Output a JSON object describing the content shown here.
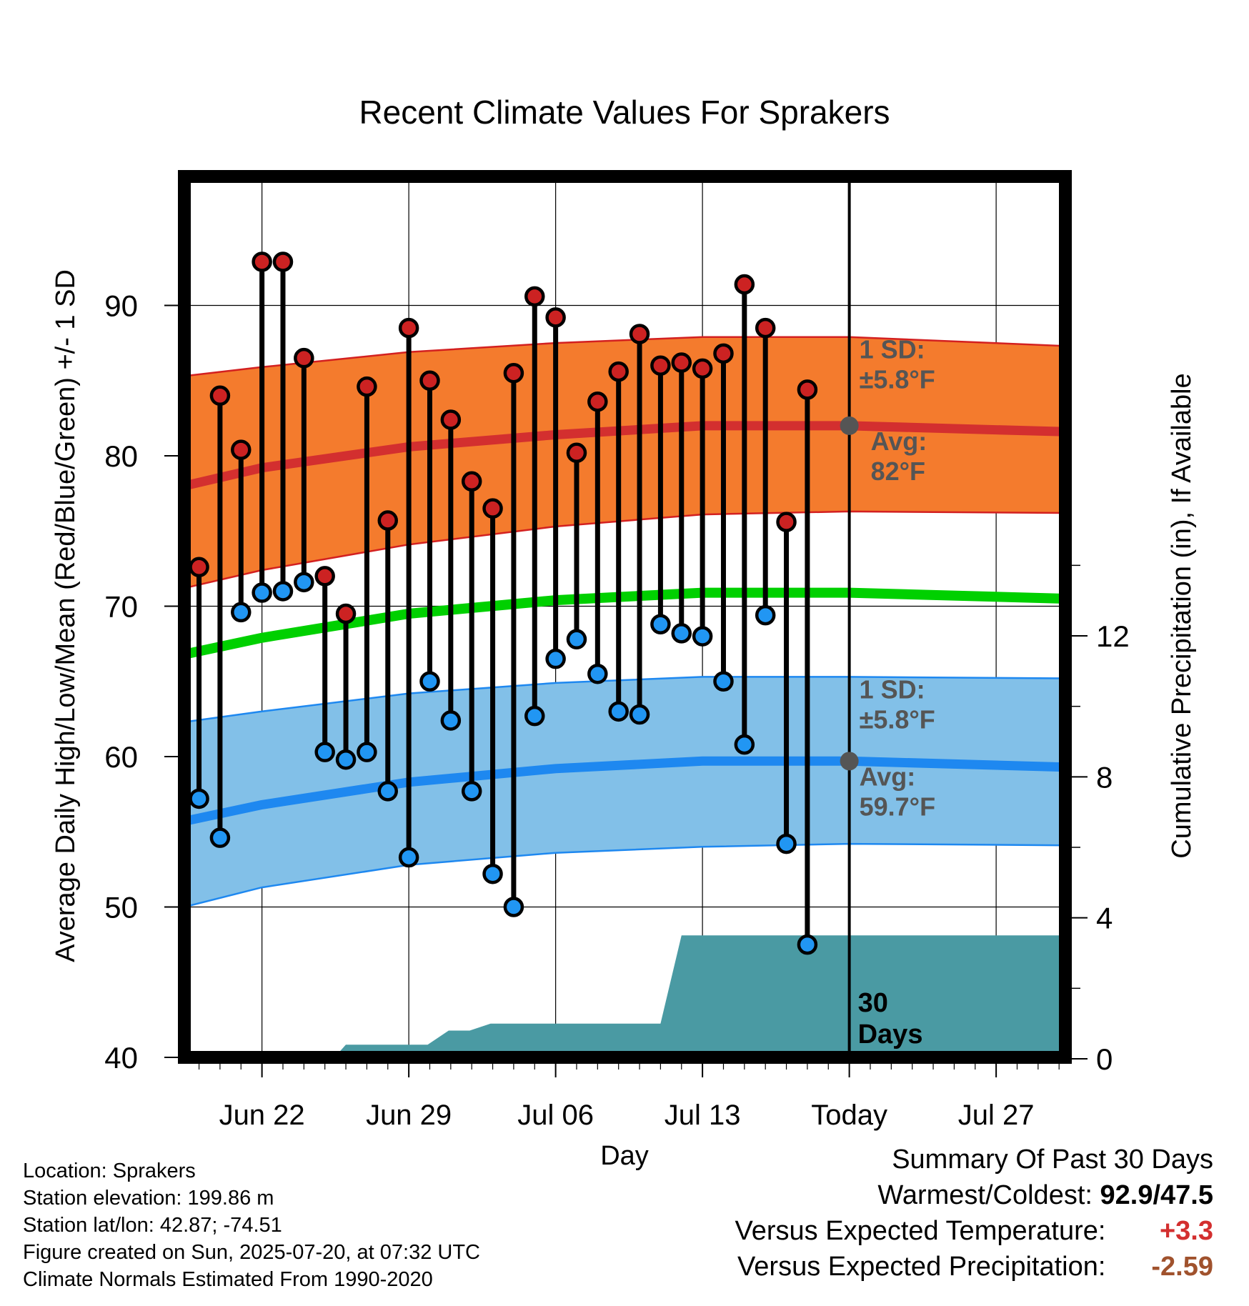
{
  "chart_data": {
    "type": "line",
    "title": "Recent Climate Values For Sprakers",
    "xlabel": "Day",
    "ylabel": "Average Daily High/Low/Mean (Red/Blue/Green) +/- 1 SD",
    "y2label": "Cumulative Precipitation (in), If Available",
    "ylim": [
      40,
      98
    ],
    "y_ticks": [
      "40",
      "50",
      "60",
      "70",
      "80",
      "90"
    ],
    "y2_ticks": [
      "0",
      "4",
      "8",
      "12"
    ],
    "y2_tick_values": [
      0,
      4,
      8,
      12
    ],
    "y2lim": [
      0,
      24
    ],
    "x_ticks": [
      "Jun 22",
      "Jun 29",
      "Jul 06",
      "Jul 13",
      "Today",
      "Jul 27"
    ],
    "x_tick_days": [
      22,
      29,
      36,
      43,
      50,
      57
    ],
    "xlim": [
      18.3,
      60.3
    ],
    "days": [
      19,
      20,
      21,
      22,
      23,
      24,
      25,
      26,
      27,
      28,
      29,
      30,
      31,
      32,
      33,
      34,
      35,
      36,
      37,
      38,
      39,
      40,
      41,
      42,
      43,
      44,
      45,
      46,
      47,
      48,
      49
    ],
    "highs": [
      72.6,
      84.0,
      80.4,
      92.9,
      92.9,
      86.5,
      72.0,
      69.5,
      84.6,
      75.7,
      88.5,
      85.0,
      82.4,
      78.3,
      76.5,
      85.5,
      90.6,
      89.2,
      80.2,
      83.6,
      85.6,
      88.1,
      86.0,
      86.2,
      85.8,
      86.8,
      91.4,
      88.5,
      75.6,
      84.4,
      null
    ],
    "lows": [
      57.2,
      54.6,
      69.6,
      70.9,
      71.0,
      71.6,
      60.3,
      59.8,
      60.3,
      57.7,
      53.3,
      65.0,
      62.4,
      57.7,
      52.2,
      50.0,
      62.7,
      66.5,
      67.8,
      65.5,
      63.0,
      62.8,
      68.8,
      68.2,
      68.0,
      65.0,
      60.8,
      69.4,
      54.2,
      47.5,
      null
    ],
    "normal_high": {
      "days": [
        18.3,
        22,
        29,
        36,
        43,
        50,
        60.3
      ],
      "mean": [
        78.0,
        79.2,
        80.6,
        81.4,
        82.0,
        82.0,
        81.6
      ],
      "upper": [
        85.3,
        85.9,
        86.9,
        87.5,
        87.9,
        87.9,
        87.3
      ],
      "lower": [
        71.2,
        72.4,
        74.1,
        75.3,
        76.1,
        76.3,
        76.2
      ]
    },
    "normal_mean": {
      "days": [
        18.3,
        22,
        29,
        36,
        43,
        50,
        60.3
      ],
      "values": [
        66.8,
        67.9,
        69.5,
        70.4,
        70.9,
        70.9,
        70.5
      ]
    },
    "normal_low": {
      "days": [
        18.3,
        22,
        29,
        36,
        43,
        50,
        60.3
      ],
      "mean": [
        55.7,
        56.8,
        58.3,
        59.2,
        59.7,
        59.7,
        59.3
      ],
      "upper": [
        62.3,
        63.0,
        64.2,
        64.9,
        65.3,
        65.3,
        65.2
      ],
      "lower": [
        50.0,
        51.3,
        52.8,
        53.6,
        54.0,
        54.2,
        54.1
      ]
    },
    "precip": {
      "days": [
        18.3,
        25.4,
        26,
        29.9,
        30.9,
        31.9,
        32.9,
        41,
        42,
        60.3
      ],
      "values": [
        0,
        0,
        0.4,
        0.4,
        0.8,
        0.8,
        1.0,
        1.0,
        3.5,
        3.5
      ]
    },
    "annotations": {
      "high_sd": "1 SD:",
      "high_sd_value": "±5.8°F",
      "high_avg": "Avg:",
      "high_avg_value": "82°F",
      "low_sd": "1 SD:",
      "low_sd_value": "±5.8°F",
      "low_avg": "Avg:",
      "low_avg_value": "59.7°F",
      "days_label_1": "30",
      "days_label_2": "Days"
    },
    "today_day": 50,
    "colors": {
      "high_band": "#f47b2d",
      "high_line": "#d32f2f",
      "mean_line": "#00d000",
      "low_band": "#82c0e8",
      "low_line": "#1e88f0",
      "precip": "#4a9aa3",
      "high_dot": "#cc2222",
      "low_dot": "#2196f3",
      "annotation": "#555555"
    }
  },
  "info": {
    "location": "Location: Sprakers",
    "elevation": "Station elevation: 199.86 m",
    "latlon": "Station lat/lon: 42.87; -74.51",
    "created": "Figure created on Sun, 2025-07-20, at 07:32 UTC",
    "normals": "Climate Normals Estimated From 1990-2020"
  },
  "summary": {
    "title": "Summary Of Past 30 Days",
    "warm_cold_label": "Warmest/Coldest:",
    "warm_cold_value": "92.9/47.5",
    "temp_label": "Versus Expected Temperature:",
    "temp_value": "+3.3",
    "temp_color": "#d32f2f",
    "precip_label": "Versus Expected Precipitation:",
    "precip_value": "-2.59",
    "precip_color": "#a0522d"
  }
}
